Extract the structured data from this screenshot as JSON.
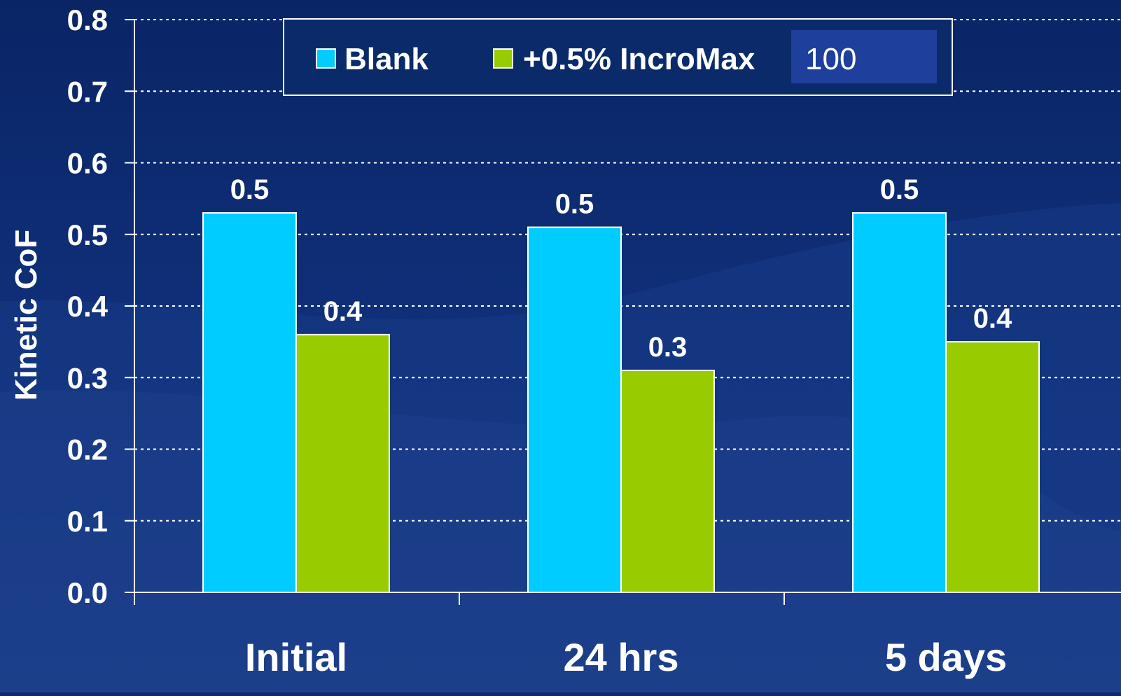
{
  "chart_data": {
    "type": "bar",
    "categories": [
      "Initial",
      "24 hrs",
      "5 days"
    ],
    "series": [
      {
        "name": "Blank",
        "values": [
          0.53,
          0.51,
          0.53
        ],
        "labels": [
          "0.5",
          "0.5",
          "0.5"
        ],
        "color": "#00ccff"
      },
      {
        "name": "+0.5% IncroMax",
        "values": [
          0.36,
          0.31,
          0.35
        ],
        "labels": [
          "0.4",
          "0.3",
          "0.4"
        ],
        "color": "#99cc00"
      }
    ],
    "legend_extra": "100",
    "ylabel": "Kinetic CoF",
    "xlabel": "",
    "ylim": [
      0,
      0.8
    ],
    "yticks": [
      "0.0",
      "0.1",
      "0.2",
      "0.3",
      "0.4",
      "0.5",
      "0.6",
      "0.7",
      "0.8"
    ],
    "grid": "dotted horizontal",
    "legend_position": "top-center",
    "colors": {
      "background": "#0b2a6a",
      "text": "#ffffff",
      "highlight": "#1f3f9c"
    }
  }
}
